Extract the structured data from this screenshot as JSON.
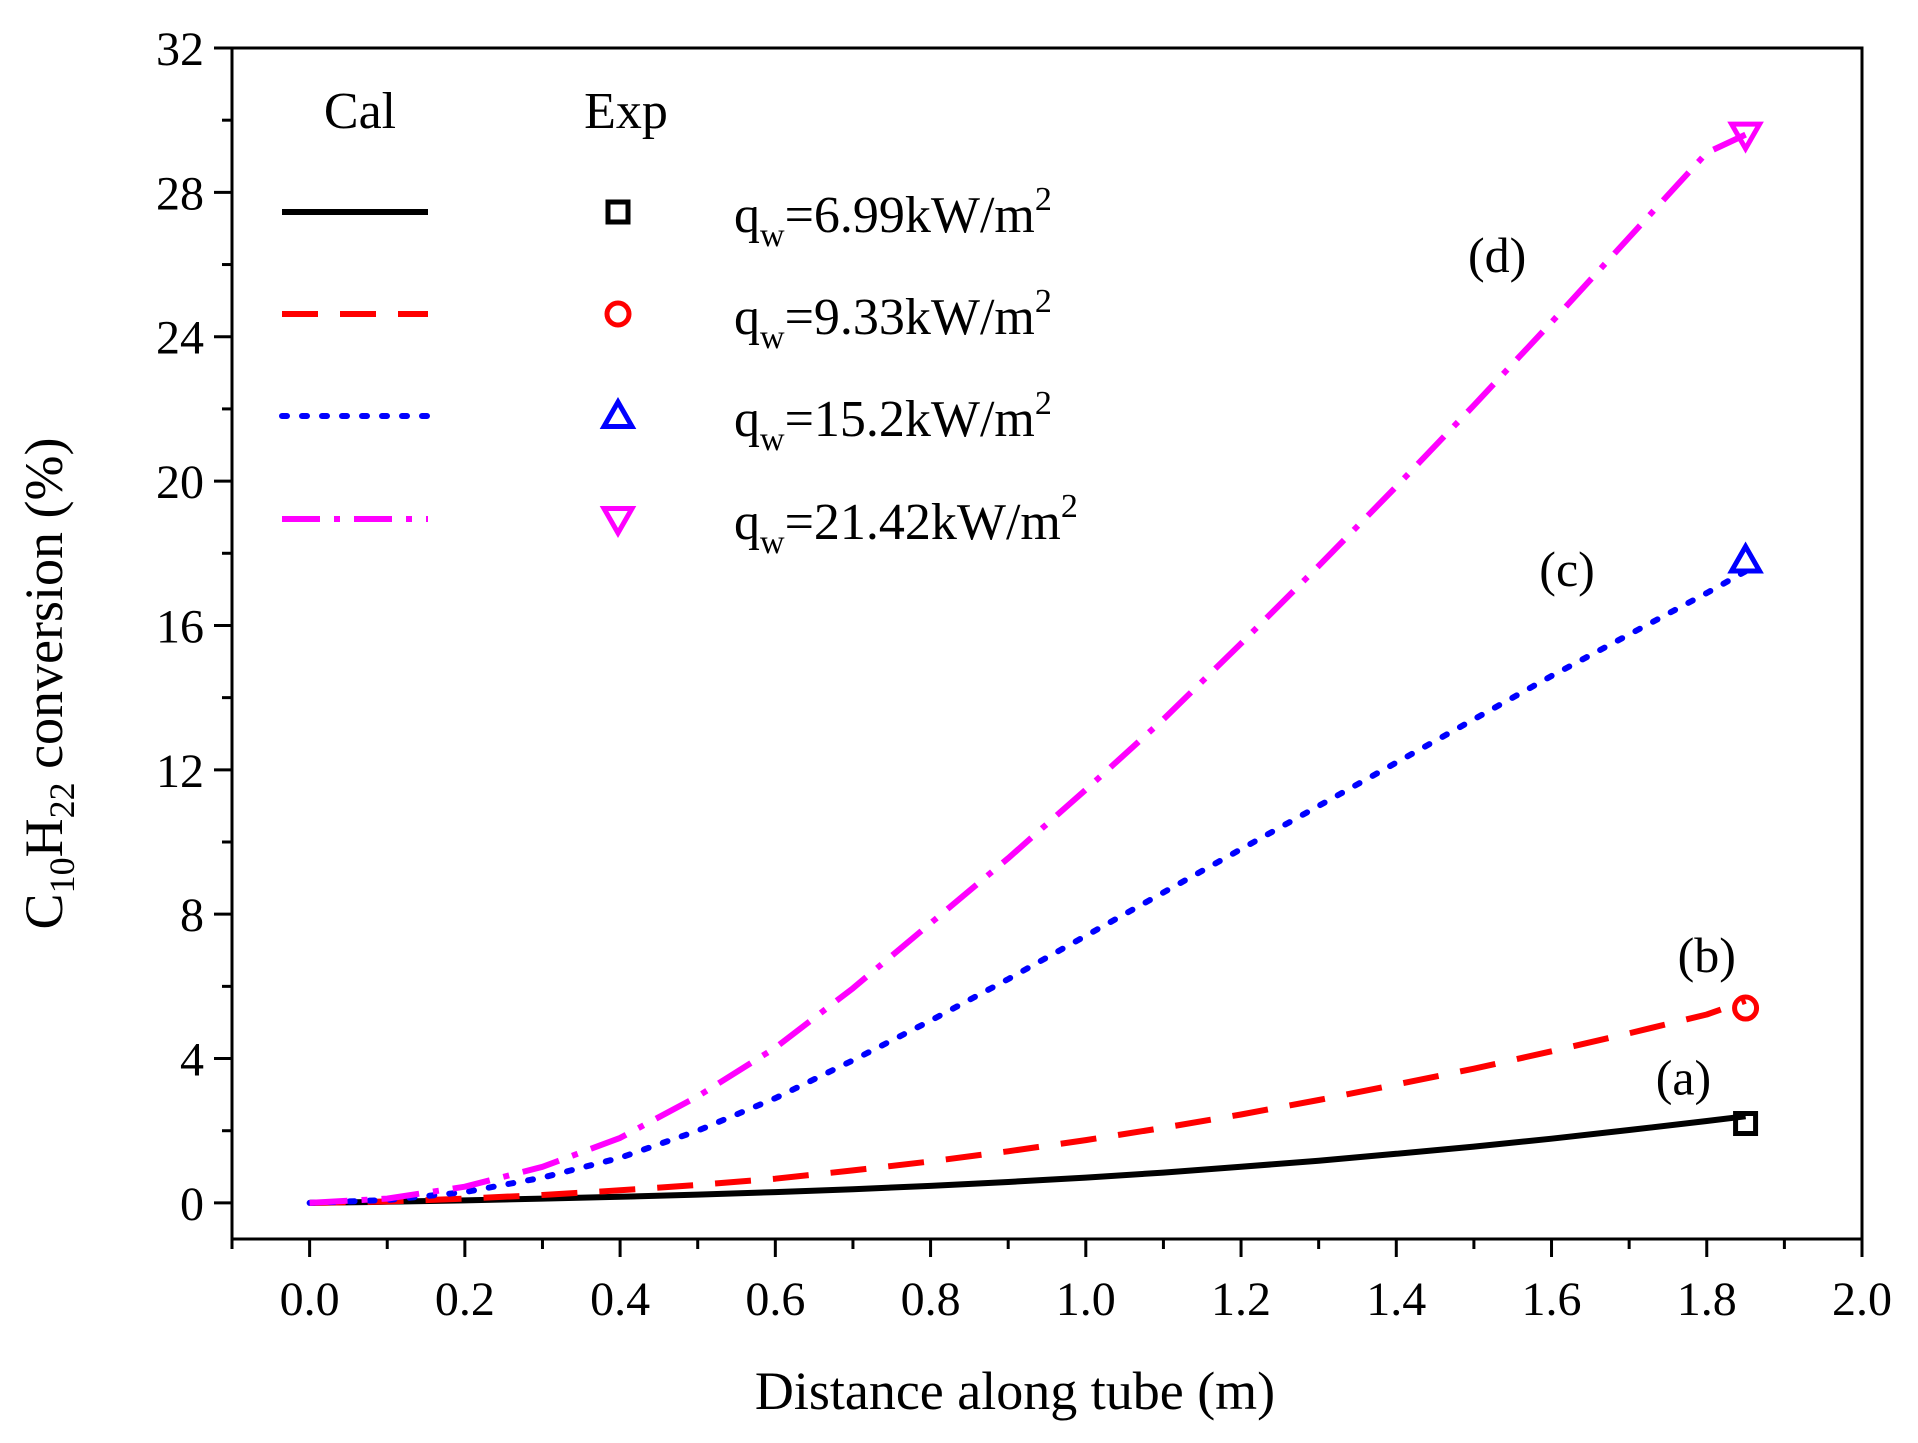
{
  "chart_data": {
    "type": "line",
    "title": "",
    "xlabel": "Distance along tube (m)",
    "ylabel": {
      "prefix": "C",
      "sub1": "10",
      "mid": "H",
      "sub2": "22",
      "suffix": " conversion (%)"
    },
    "xlim": [
      -0.1,
      2.0
    ],
    "ylim": [
      -1,
      32
    ],
    "x_ticks": [
      0.0,
      0.2,
      0.4,
      0.6,
      0.8,
      1.0,
      1.2,
      1.4,
      1.6,
      1.8,
      2.0
    ],
    "x_tick_labels": [
      "0.0",
      "0.2",
      "0.4",
      "0.6",
      "0.8",
      "1.0",
      "1.2",
      "1.4",
      "1.6",
      "1.8",
      "2.0"
    ],
    "y_ticks": [
      0,
      4,
      8,
      12,
      16,
      20,
      24,
      28,
      32
    ],
    "y_tick_labels": [
      "0",
      "4",
      "8",
      "12",
      "16",
      "20",
      "24",
      "28",
      "32"
    ],
    "legend": {
      "placement": "top-left",
      "header_cal": "Cal",
      "header_exp": "Exp"
    },
    "series": [
      {
        "name": "qw=6.99kW/m2",
        "label_base": "q",
        "label_sub": "w",
        "label_value": "=6.99kW/m",
        "label_sup": "2",
        "curve_label": "(a)",
        "curve_label_at": [
          1.77,
          3.0
        ],
        "color": "#000000",
        "dash": "solid",
        "marker": "square",
        "x": [
          0.0,
          0.1,
          0.2,
          0.3,
          0.4,
          0.5,
          0.6,
          0.7,
          0.8,
          0.9,
          1.0,
          1.1,
          1.2,
          1.3,
          1.4,
          1.5,
          1.6,
          1.7,
          1.8,
          1.85
        ],
        "y": [
          0.0,
          0.03,
          0.07,
          0.12,
          0.17,
          0.23,
          0.3,
          0.38,
          0.47,
          0.58,
          0.7,
          0.84,
          1.0,
          1.17,
          1.36,
          1.56,
          1.78,
          2.02,
          2.27,
          2.4
        ],
        "exp": {
          "x": 1.85,
          "y": 2.2
        }
      },
      {
        "name": "qw=9.33kW/m2",
        "label_base": "q",
        "label_sub": "w",
        "label_value": "=9.33kW/m",
        "label_sup": "2",
        "curve_label": "(b)",
        "curve_label_at": [
          1.8,
          6.4
        ],
        "color": "#ff0000",
        "dash": "dash",
        "marker": "circle",
        "x": [
          0.0,
          0.1,
          0.2,
          0.3,
          0.4,
          0.5,
          0.6,
          0.7,
          0.8,
          0.9,
          1.0,
          1.1,
          1.2,
          1.3,
          1.4,
          1.5,
          1.6,
          1.7,
          1.8,
          1.85
        ],
        "y": [
          0.0,
          0.04,
          0.12,
          0.22,
          0.35,
          0.5,
          0.67,
          0.9,
          1.15,
          1.43,
          1.74,
          2.08,
          2.45,
          2.85,
          3.28,
          3.72,
          4.2,
          4.7,
          5.22,
          5.6
        ],
        "exp": {
          "x": 1.85,
          "y": 5.4
        }
      },
      {
        "name": "qw=15.2kW/m2",
        "label_base": "q",
        "label_sub": "w",
        "label_value": "=15.2kW/m",
        "label_sup": "2",
        "curve_label": "(c)",
        "curve_label_at": [
          1.62,
          17.1
        ],
        "color": "#0000ff",
        "dash": "dot",
        "marker": "triangle-up",
        "x": [
          0.0,
          0.1,
          0.2,
          0.3,
          0.4,
          0.5,
          0.6,
          0.7,
          0.8,
          0.9,
          1.0,
          1.1,
          1.2,
          1.3,
          1.4,
          1.5,
          1.6,
          1.7,
          1.8,
          1.85
        ],
        "y": [
          0.0,
          0.08,
          0.3,
          0.7,
          1.25,
          2.0,
          2.9,
          3.95,
          5.05,
          6.2,
          7.4,
          8.6,
          9.8,
          11.0,
          12.2,
          13.4,
          14.6,
          15.75,
          16.9,
          17.5
        ],
        "exp": {
          "x": 1.85,
          "y": 17.8
        }
      },
      {
        "name": "qw=21.42kW/m2",
        "label_base": "q",
        "label_sub": "w",
        "label_value": "=21.42kW/m",
        "label_sup": "2",
        "curve_label": "(d)",
        "curve_label_at": [
          1.53,
          25.8
        ],
        "color": "#ff00ff",
        "dash": "dashdot",
        "marker": "triangle-down",
        "x": [
          0.0,
          0.1,
          0.2,
          0.3,
          0.4,
          0.5,
          0.6,
          0.7,
          0.8,
          0.9,
          1.0,
          1.1,
          1.2,
          1.3,
          1.4,
          1.5,
          1.6,
          1.7,
          1.8,
          1.85
        ],
        "y": [
          0.0,
          0.12,
          0.45,
          1.0,
          1.8,
          2.95,
          4.3,
          5.95,
          7.75,
          9.55,
          11.45,
          13.4,
          15.5,
          17.65,
          19.85,
          22.1,
          24.4,
          26.75,
          29.1,
          29.6
        ],
        "exp": {
          "x": 1.85,
          "y": 29.6
        }
      }
    ]
  }
}
